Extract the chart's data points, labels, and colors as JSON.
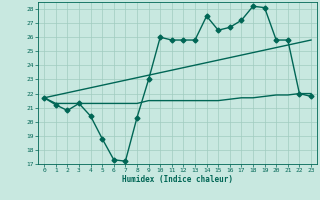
{
  "xlabel": "Humidex (Indice chaleur)",
  "xlim": [
    -0.5,
    23.5
  ],
  "ylim": [
    17,
    28.5
  ],
  "yticks": [
    17,
    18,
    19,
    20,
    21,
    22,
    23,
    24,
    25,
    26,
    27,
    28
  ],
  "xticks": [
    0,
    1,
    2,
    3,
    4,
    5,
    6,
    7,
    8,
    9,
    10,
    11,
    12,
    13,
    14,
    15,
    16,
    17,
    18,
    19,
    20,
    21,
    22,
    23
  ],
  "bg_color": "#c8e8e0",
  "grid_color": "#a0ccc0",
  "line_color": "#006655",
  "series1_x": [
    0,
    1,
    2,
    3,
    4,
    5,
    6,
    7,
    8,
    9,
    10,
    11,
    12,
    13,
    14,
    15,
    16,
    17,
    18,
    19,
    20,
    21,
    22,
    23
  ],
  "series1_y": [
    21.7,
    21.2,
    20.8,
    21.3,
    20.4,
    18.8,
    17.3,
    17.2,
    20.3,
    23.0,
    26.0,
    25.8,
    25.8,
    25.8,
    27.5,
    26.5,
    26.7,
    27.2,
    28.2,
    28.1,
    25.8,
    25.8,
    22.0,
    21.8
  ],
  "series2_x": [
    0,
    1,
    2,
    3,
    4,
    5,
    6,
    7,
    8,
    9,
    10,
    11,
    12,
    13,
    14,
    15,
    16,
    17,
    18,
    19,
    20,
    21,
    22,
    23
  ],
  "series2_y": [
    21.7,
    21.3,
    21.3,
    21.3,
    21.3,
    21.3,
    21.3,
    21.3,
    21.3,
    21.5,
    21.5,
    21.5,
    21.5,
    21.5,
    21.5,
    21.5,
    21.6,
    21.7,
    21.7,
    21.8,
    21.9,
    21.9,
    22.0,
    22.0
  ],
  "series3_x": [
    0,
    23
  ],
  "series3_y": [
    21.7,
    25.8
  ],
  "marker": "D",
  "markersize": 2.5,
  "linewidth": 1.0
}
